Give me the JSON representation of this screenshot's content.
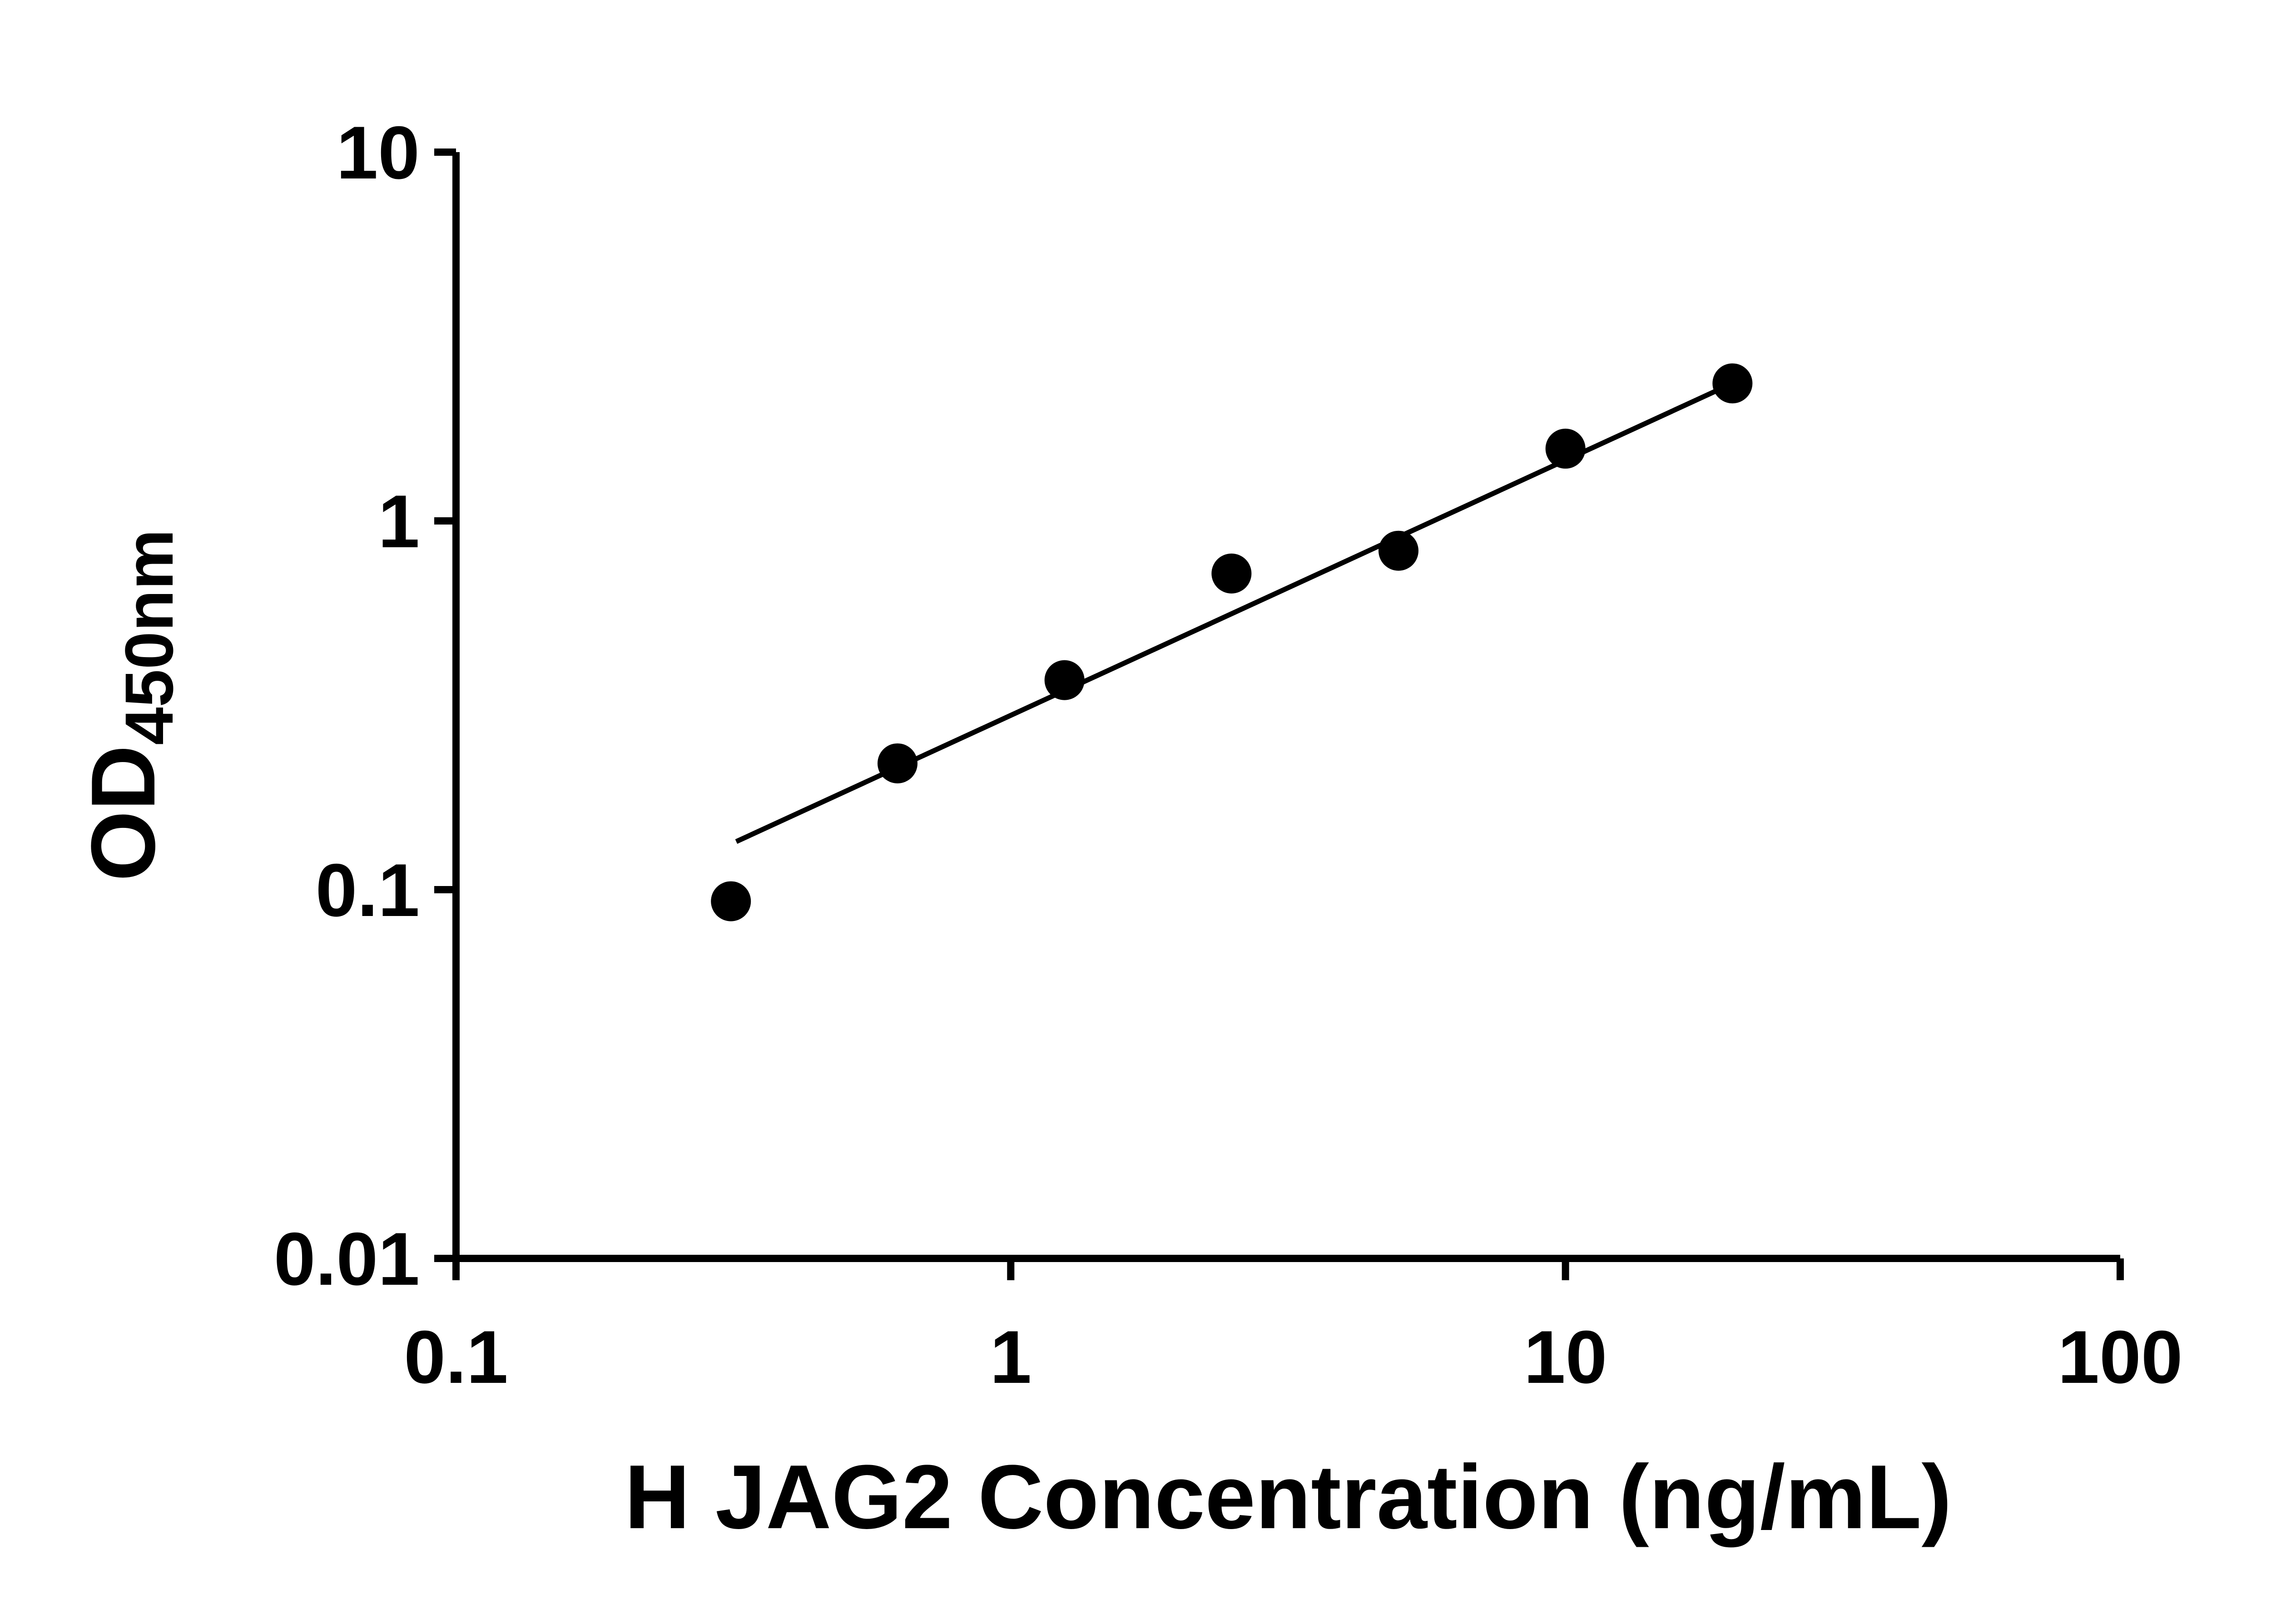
{
  "chart_data": {
    "type": "scatter",
    "title": "",
    "xlabel": "H JAG2 Concentration (ng/mL)",
    "ylabel": "OD",
    "ylabel_subscript": "450nm",
    "xscale": "log",
    "yscale": "log",
    "xlim": [
      0.1,
      100
    ],
    "ylim": [
      0.01,
      10
    ],
    "x_ticks": [
      "0.1",
      "1",
      "10",
      "100"
    ],
    "y_ticks": [
      "0.01",
      "0.1",
      "1",
      "10"
    ],
    "grid": false,
    "legend": false,
    "axis_color": "#000000",
    "background": "#ffffff",
    "series": [
      {
        "marker": "circle",
        "marker_color": "#000000",
        "x": [
          0.313,
          0.625,
          1.25,
          2.5,
          5,
          10,
          20
        ],
        "y": [
          0.093,
          0.22,
          0.37,
          0.72,
          0.83,
          1.57,
          2.36
        ]
      }
    ],
    "fit_line": {
      "color": "#000000",
      "x_start": 0.32,
      "y_start": 0.135,
      "x_end": 20,
      "y_end": 2.36
    }
  }
}
